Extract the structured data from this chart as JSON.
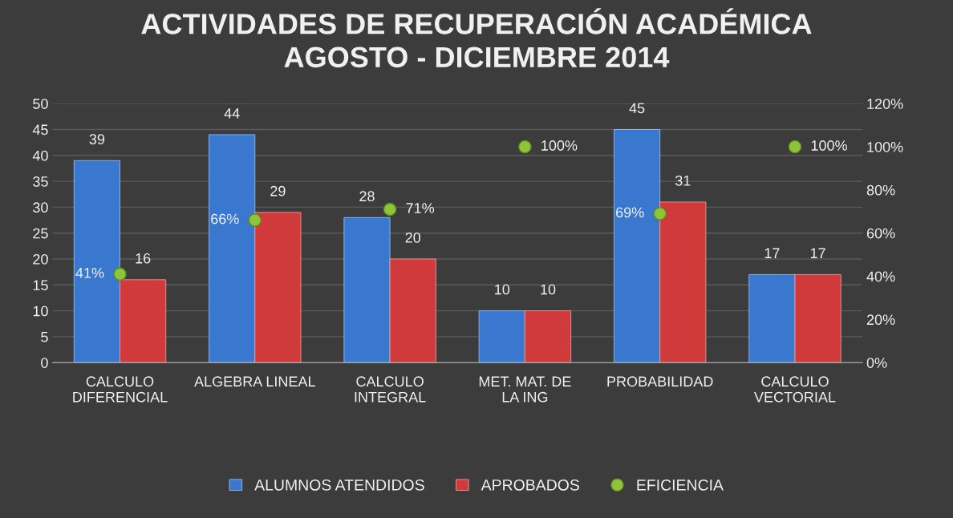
{
  "chart_data": {
    "type": "bar",
    "title": "ACTIVIDADES DE RECUPERACIÓN ACADÉMICA\nAGOSTO - DICIEMBRE 2014",
    "categories": [
      "CALCULO\nDIFERENCIAL",
      "ALGEBRA LINEAL",
      "CALCULO\nINTEGRAL",
      "MET. MAT. DE\nLA ING",
      "PROBABILIDAD",
      "CALCULO\nVECTORIAL"
    ],
    "series": [
      {
        "name": "ALUMNOS ATENDIDOS",
        "color": "#3a78d0",
        "values": [
          39,
          44,
          28,
          10,
          45,
          17
        ]
      },
      {
        "name": "APROBADOS",
        "color": "#d03a3a",
        "values": [
          16,
          29,
          20,
          10,
          31,
          17
        ]
      },
      {
        "name": "EFICIENCIA",
        "type": "scatter",
        "axis": "y2",
        "color": "#8fc43a",
        "values": [
          41,
          66,
          71,
          100,
          69,
          100
        ],
        "value_labels": [
          "41%",
          "66%",
          "71%",
          "100%",
          "69%",
          "100%"
        ]
      }
    ],
    "ylim": [
      0,
      50
    ],
    "yticks": [
      0,
      5,
      10,
      15,
      20,
      25,
      30,
      35,
      40,
      45,
      50
    ],
    "y2lim": [
      0,
      120
    ],
    "y2ticks": [
      {
        "value": 0,
        "label": "0%"
      },
      {
        "value": 20,
        "label": "20%"
      },
      {
        "value": 40,
        "label": "40%"
      },
      {
        "value": 60,
        "label": "60%"
      },
      {
        "value": 80,
        "label": "80%"
      },
      {
        "value": 100,
        "label": "100%"
      },
      {
        "value": 120,
        "label": "120%"
      }
    ],
    "grid": "y",
    "legend": "bottom",
    "data_labels": true,
    "marker": "circle"
  }
}
